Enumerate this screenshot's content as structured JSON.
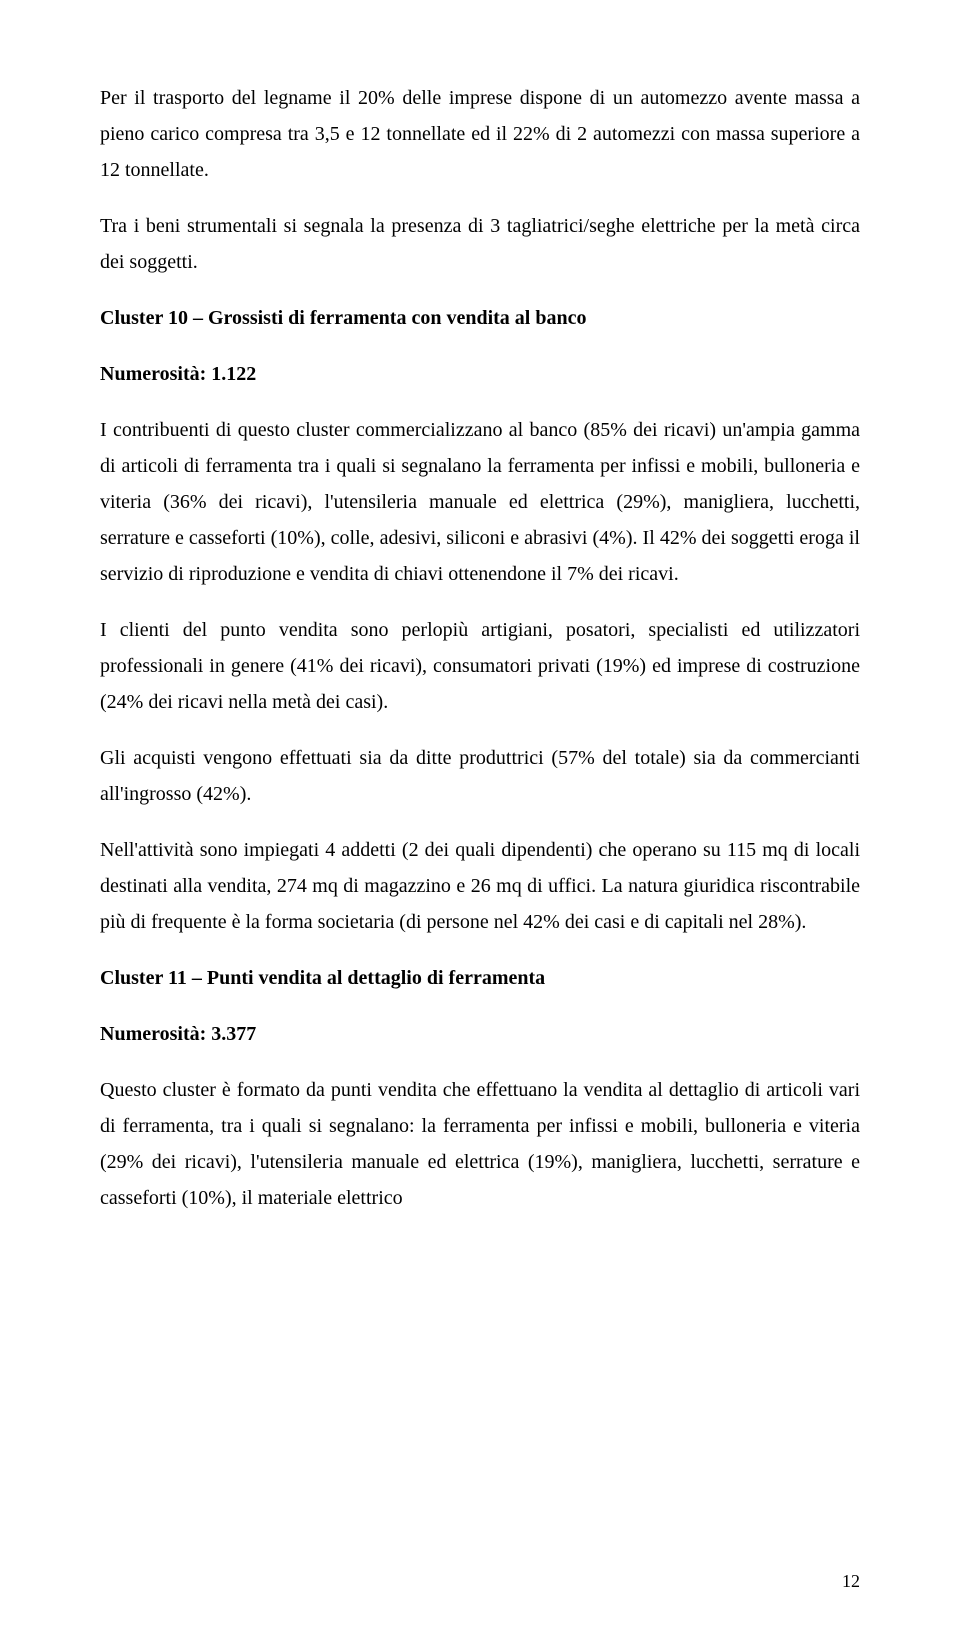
{
  "document": {
    "paragraphs": [
      {
        "text": "Per il trasporto del legname il 20% delle imprese dispone di un automezzo avente massa a pieno carico compresa tra 3,5 e 12 tonnellate ed il 22% di 2 automezzi con massa superiore a 12 tonnellate.",
        "type": "normal"
      },
      {
        "text": "Tra i beni strumentali si segnala la presenza di 3 tagliatrici/seghe elettriche per la metà circa dei soggetti.",
        "type": "normal"
      },
      {
        "text": "Cluster 10 – Grossisti di ferramenta con vendita al banco",
        "type": "bold"
      },
      {
        "text": "Numerosità: 1.122",
        "type": "bold"
      },
      {
        "text": "I contribuenti di questo cluster commercializzano al banco (85% dei ricavi) un'ampia gamma di articoli di ferramenta tra i quali si segnalano la ferramenta per infissi e mobili, bulloneria e viteria (36% dei ricavi), l'utensileria manuale ed elettrica (29%), manigliera, lucchetti, serrature e casseforti (10%), colle, adesivi, siliconi e abrasivi (4%). Il 42% dei soggetti eroga il servizio di riproduzione e vendita di chiavi ottenendone il 7% dei ricavi.",
        "type": "normal"
      },
      {
        "text": "I clienti del punto vendita sono perlopiù artigiani, posatori, specialisti ed utilizzatori professionali in genere (41% dei ricavi), consumatori privati (19%) ed imprese di costruzione (24% dei ricavi nella metà dei casi).",
        "type": "normal"
      },
      {
        "text": "Gli acquisti vengono effettuati sia da ditte produttrici (57% del totale) sia da commercianti all'ingrosso (42%).",
        "type": "normal"
      },
      {
        "text": "Nell'attività sono impiegati 4 addetti (2 dei quali dipendenti) che operano su 115 mq di locali destinati alla vendita, 274 mq di magazzino e 26 mq di uffici. La natura giuridica riscontrabile più di frequente è la forma societaria (di persone nel 42% dei casi e di capitali nel 28%).",
        "type": "normal"
      },
      {
        "text": "Cluster 11 – Punti vendita al dettaglio di ferramenta",
        "type": "bold"
      },
      {
        "text": "Numerosità: 3.377",
        "type": "bold"
      },
      {
        "text": "Questo cluster è formato da punti vendita che effettuano la vendita al dettaglio di articoli vari di ferramenta, tra i quali si segnalano: la ferramenta per infissi e mobili, bulloneria e viteria (29% dei ricavi), l'utensileria manuale ed elettrica (19%), manigliera, lucchetti, serrature e casseforti (10%), il materiale elettrico",
        "type": "normal"
      }
    ],
    "pageNumber": "12"
  },
  "styling": {
    "fontFamily": "Times New Roman",
    "fontSize": 20,
    "lineHeight": 1.8,
    "backgroundColor": "#ffffff",
    "textColor": "#000000",
    "pageWidth": 960,
    "pageHeight": 1632
  }
}
